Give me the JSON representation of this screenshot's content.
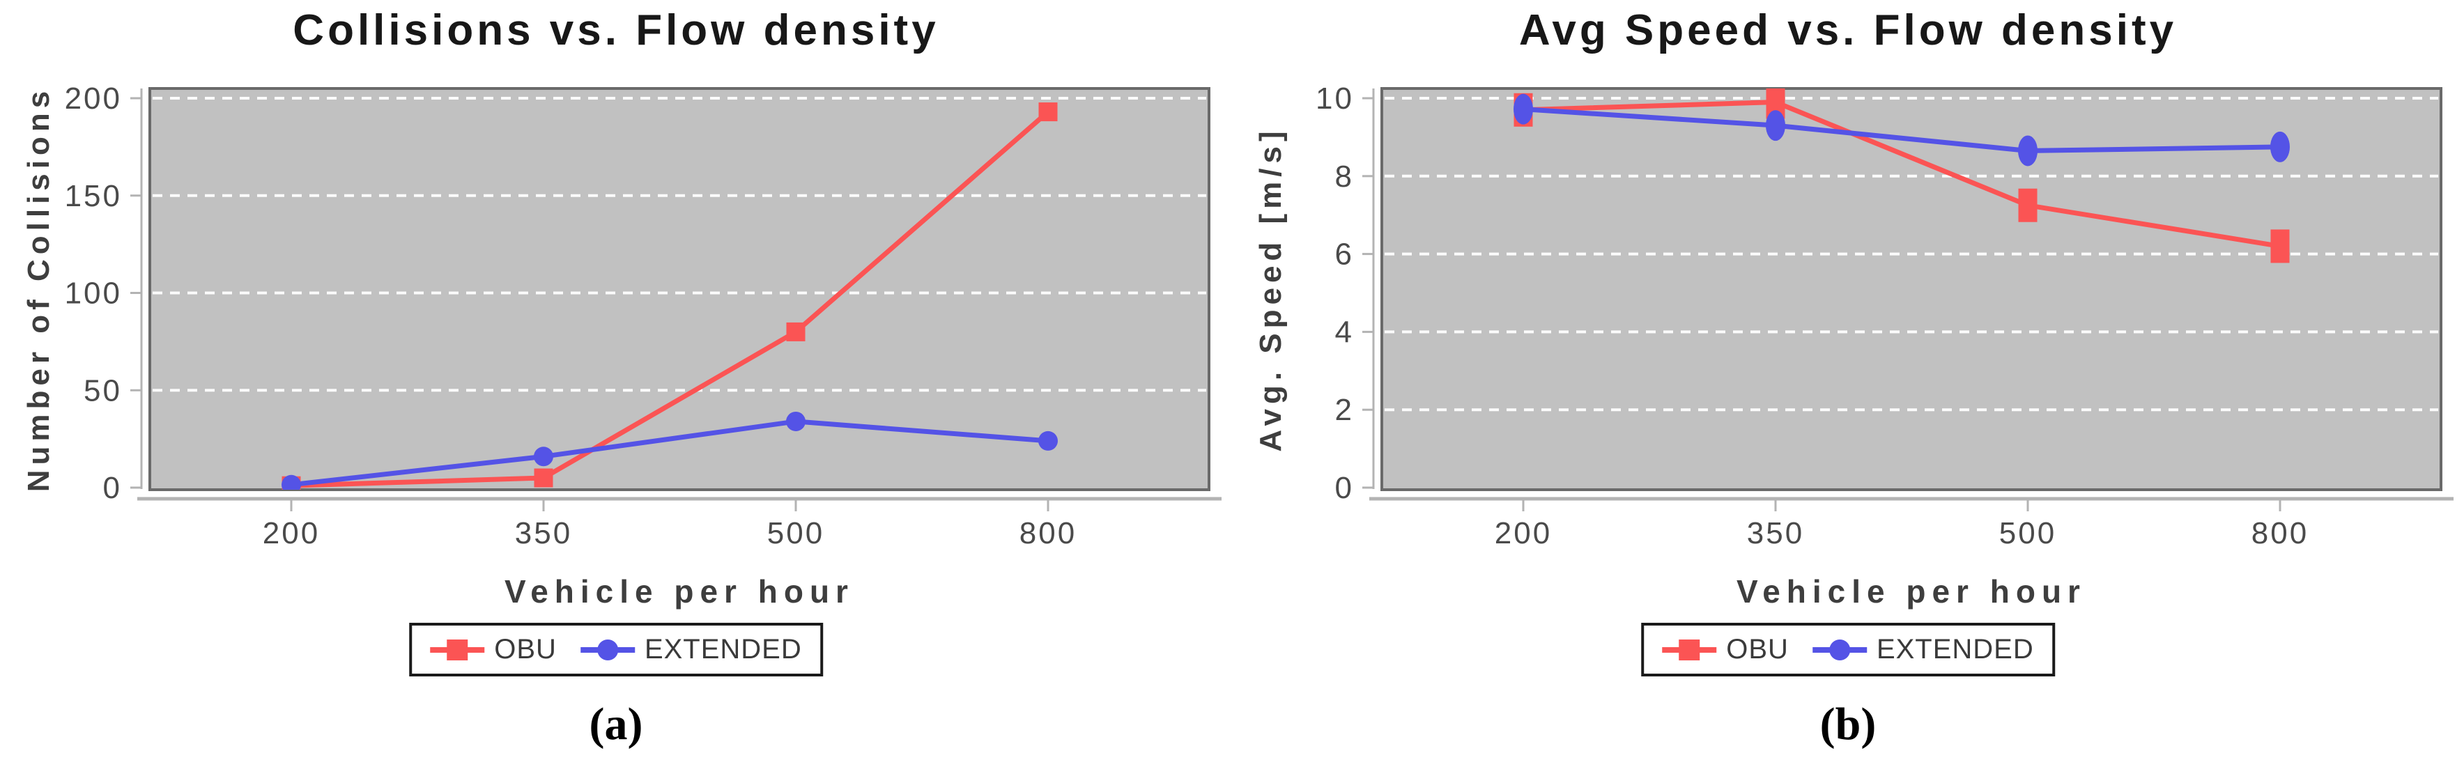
{
  "figure": {
    "background": "#ffffff",
    "colors": {
      "plot_background": "#c1c1c1",
      "plot_border": "#6a6a6a",
      "gridline": "#ffffff",
      "axis_line": "#b3b3b3",
      "tick_label": "#4a4a4a",
      "title_text": "#181818",
      "axis_label_text": "#3e3e3e",
      "obu_red": "#fb5454",
      "extended_blue": "#5453e6"
    }
  },
  "chart_data": [
    {
      "id": "a",
      "type": "line",
      "title": "Collisions vs. Flow density",
      "xlabel": "Vehicle per hour",
      "ylabel": "Number of Collisions",
      "caption": "(a)",
      "categories": [
        "200",
        "350",
        "500",
        "800"
      ],
      "series": [
        {
          "name": "OBU",
          "marker": "square",
          "color": "#fb5454",
          "values": [
            1,
            5,
            80,
            193
          ]
        },
        {
          "name": "EXTENDED",
          "marker": "circle",
          "color": "#5453e6",
          "values": [
            1.5,
            16,
            34,
            24
          ]
        }
      ],
      "ylim": [
        0,
        206
      ],
      "yticks": [
        0,
        50,
        100,
        150,
        200
      ],
      "grid": "horizontal white dashed",
      "legend_position": "below",
      "plot_background": "#c1c1c1",
      "error_bars": false
    },
    {
      "id": "b",
      "type": "line",
      "title": "Avg Speed vs. Flow density",
      "xlabel": "Vehicle per hour",
      "ylabel": "Avg. Speed [m/s]",
      "caption": "(b)",
      "categories": [
        "200",
        "350",
        "500",
        "800"
      ],
      "series": [
        {
          "name": "OBU",
          "marker": "square",
          "color": "#fb5454",
          "values": [
            9.7,
            9.9,
            7.25,
            6.2
          ]
        },
        {
          "name": "EXTENDED",
          "marker": "circle",
          "color": "#5453e6",
          "values": [
            9.72,
            9.3,
            8.65,
            8.75
          ]
        }
      ],
      "ylim": [
        0,
        10.3
      ],
      "yticks": [
        0,
        2,
        4,
        6,
        8,
        10
      ],
      "grid": "horizontal white dashed",
      "legend_position": "below",
      "plot_background": "#c1c1c1",
      "error_bars": true
    }
  ]
}
